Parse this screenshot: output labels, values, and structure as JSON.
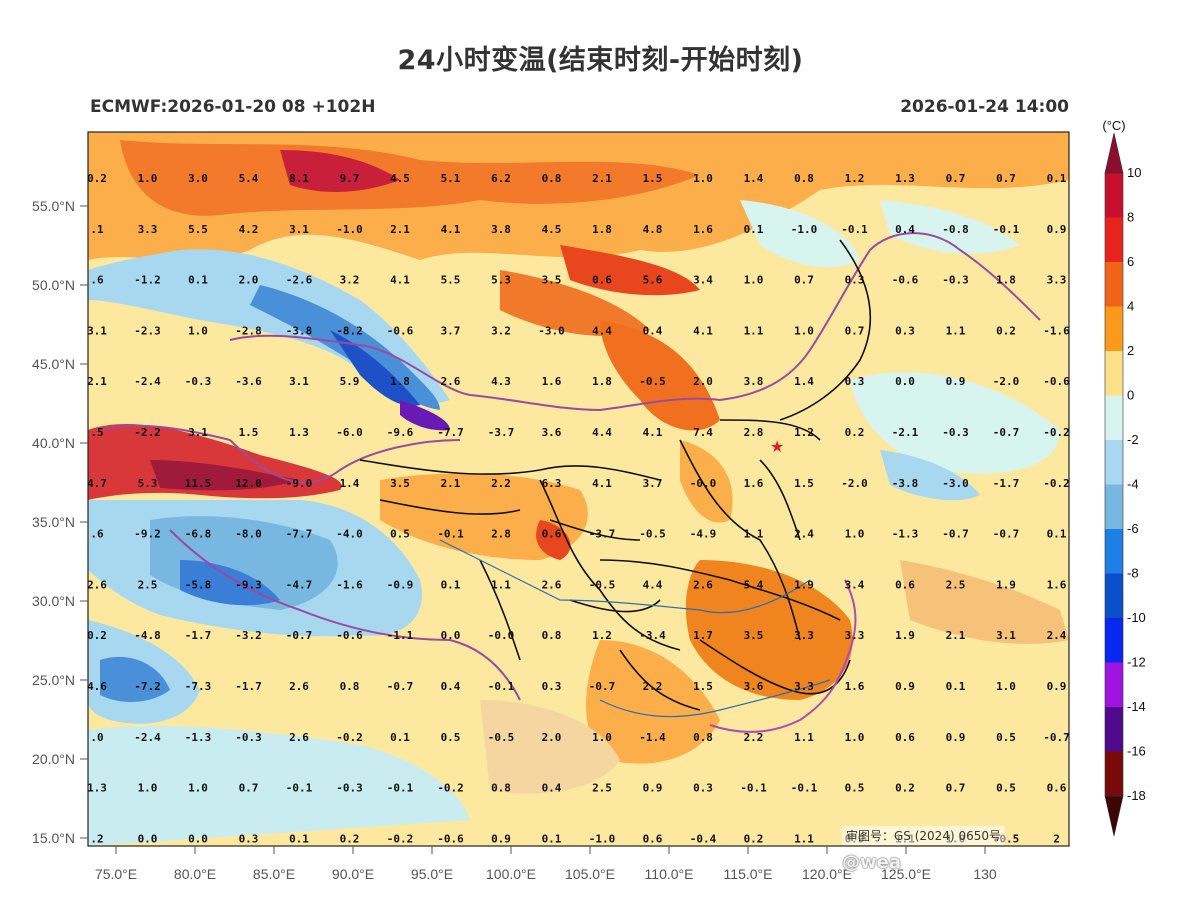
{
  "title": "24小时变温(结束时刻-开始时刻)",
  "model_run": "ECMWF:2026-01-20 08 +102H",
  "valid_time": "2026-01-24 14:00",
  "colorbar": {
    "unit": "(°C)",
    "levels": [
      "10",
      "8",
      "6",
      "4",
      "2",
      "0",
      "-2",
      "-4",
      "-6",
      "-8",
      "-10",
      "-12",
      "-14",
      "-16",
      "-18"
    ],
    "colors": [
      "#8c0d2e",
      "#c8102e",
      "#e8231c",
      "#f0641a",
      "#fb9a1a",
      "#fde08a",
      "#d8f4ee",
      "#a8d8f0",
      "#78b8e0",
      "#1e7fe6",
      "#0a50c8",
      "#0828f0",
      "#a014e0",
      "#500a8c",
      "#7a0a0a",
      "#3c0606"
    ]
  },
  "axes": {
    "lat_labels": [
      "55.0°N",
      "50.0°N",
      "45.0°N",
      "40.0°N",
      "35.0°N",
      "30.0°N",
      "25.0°N",
      "20.0°N",
      "15.0°N"
    ],
    "lon_labels": [
      "75.0°E",
      "80.0°E",
      "85.0°E",
      "90.0°E",
      "95.0°E",
      "100.0°E",
      "105.0°E",
      "110.0°E",
      "115.0°E",
      "120.0°E",
      "125.0°E",
      "130"
    ]
  },
  "grid_values": [
    [
      "0.2",
      "1.0",
      "3.0",
      "5.4",
      "8.1",
      "9.7",
      "4.5",
      "5.1",
      "6.2",
      "0.8",
      "2.1",
      "1.5",
      "1.0",
      "1.4",
      "0.8",
      "1.2",
      "1.3",
      "0.7",
      "0.7",
      "0.1"
    ],
    [
      ".1",
      "3.3",
      "5.5",
      "4.2",
      "3.1",
      "-1.0",
      "2.1",
      "4.1",
      "3.8",
      "4.5",
      "1.8",
      "4.8",
      "1.6",
      "0.1",
      "-1.0",
      "-0.1",
      "0.4",
      "-0.8",
      "-0.1",
      "0.9"
    ],
    [
      ".6",
      "-1.2",
      "0.1",
      "2.0",
      "-2.6",
      "3.2",
      "4.1",
      "5.5",
      "5.3",
      "3.5",
      "0.6",
      "5.6",
      "3.4",
      "1.0",
      "0.7",
      "0.3",
      "-0.6",
      "-0.3",
      "1.8",
      "3.3"
    ],
    [
      "3.1",
      "-2.3",
      "1.0",
      "-2.8",
      "-3.8",
      "-8.2",
      "-0.6",
      "3.7",
      "3.2",
      "-3.0",
      "4.4",
      "0.4",
      "4.1",
      "1.1",
      "1.0",
      "0.7",
      "0.3",
      "1.1",
      "0.2",
      "-1.6"
    ],
    [
      "2.1",
      "-2.4",
      "-0.3",
      "-3.6",
      "3.1",
      "5.9",
      "1.8",
      "2.6",
      "4.3",
      "1.6",
      "1.8",
      "-0.5",
      "2.0",
      "3.8",
      "1.4",
      "0.3",
      "0.0",
      "0.9",
      "-2.0",
      "-0.6"
    ],
    [
      ".5",
      "-2.2",
      "3.1",
      "1.5",
      "1.3",
      "-6.0",
      "-9.6",
      "-7.7",
      "-3.7",
      "3.6",
      "4.4",
      "4.1",
      "7.4",
      "2.8",
      "1.2",
      "0.2",
      "-2.1",
      "-0.3",
      "-0.7",
      "-0.2"
    ],
    [
      "4.7",
      "5.3",
      "11.5",
      "12.0",
      "-9.0",
      "1.4",
      "3.5",
      "2.1",
      "2.2",
      "6.3",
      "4.1",
      "3.7",
      "-0.0",
      "1.6",
      "1.5",
      "-2.0",
      "-3.8",
      "-3.0",
      "-1.7",
      "-0.2"
    ],
    [
      ".6",
      "-9.2",
      "-6.8",
      "-8.0",
      "-7.7",
      "-4.0",
      "0.5",
      "-0.1",
      "2.8",
      "0.6",
      "-3.7",
      "-0.5",
      "-4.9",
      "1.1",
      "2.4",
      "1.0",
      "-1.3",
      "-0.7",
      "-0.7",
      "0.1"
    ],
    [
      "2.6",
      "2.5",
      "-5.8",
      "-9.3",
      "-4.7",
      "-1.6",
      "-0.9",
      "0.1",
      "1.1",
      "2.6",
      "-0.5",
      "4.4",
      "2.6",
      "5.4",
      "1.9",
      "3.4",
      "0.6",
      "2.5",
      "1.9",
      "1.6"
    ],
    [
      "0.2",
      "-4.8",
      "-1.7",
      "-3.2",
      "-0.7",
      "-0.6",
      "-1.1",
      "0.0",
      "-0.0",
      "0.8",
      "1.2",
      "-3.4",
      "1.7",
      "3.5",
      "3.3",
      "3.3",
      "1.9",
      "2.1",
      "3.1",
      "2.4"
    ],
    [
      "4.6",
      "-7.2",
      "-7.3",
      "-1.7",
      "2.6",
      "0.8",
      "-0.7",
      "0.4",
      "-0.1",
      "0.3",
      "-0.7",
      "2.2",
      "1.5",
      "3.6",
      "3.3",
      "1.6",
      "0.9",
      "0.1",
      "1.0",
      "0.9"
    ],
    [
      ".0",
      "-2.4",
      "-1.3",
      "-0.3",
      "2.6",
      "-0.2",
      "0.1",
      "0.5",
      "-0.5",
      "2.0",
      "1.0",
      "-1.4",
      "0.8",
      "2.2",
      "1.1",
      "1.0",
      "0.6",
      "0.9",
      "0.5",
      "-0.7"
    ],
    [
      "1.3",
      "1.0",
      "1.0",
      "0.7",
      "-0.1",
      "-0.3",
      "-0.1",
      "-0.2",
      "0.8",
      "0.4",
      "2.5",
      "0.9",
      "0.3",
      "-0.1",
      "-0.1",
      "0.5",
      "0.2",
      "0.7",
      "0.5",
      "0.6"
    ],
    [
      ".2",
      "0.0",
      "0.0",
      "0.3",
      "0.1",
      "0.2",
      "-0.2",
      "-0.6",
      "0.9",
      "0.1",
      "-1.0",
      "0.6",
      "-0.4",
      "0.2",
      "1.1",
      "0.9",
      "1.1",
      "1.0",
      "-0.5",
      "2"
    ]
  ],
  "approval_number": "审图号：GS (2024) 0650号",
  "social_watermark": "@wea"
}
